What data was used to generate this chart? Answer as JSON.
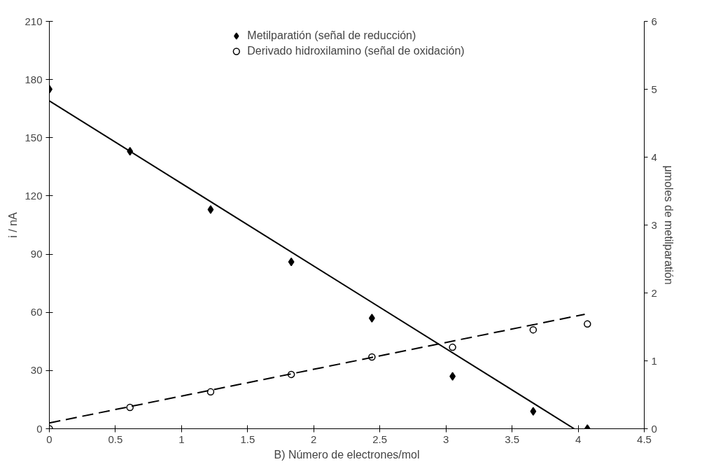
{
  "chart_data": {
    "type": "scatter",
    "xlabel": "B) Número de electrones/mol",
    "ylabel": "i / nA",
    "y2label": "μmoles de metilparatión",
    "xlim": [
      0,
      4.5
    ],
    "xticks": [
      0,
      0.5,
      1,
      1.5,
      2,
      2.5,
      3,
      3.5,
      4,
      4.5
    ],
    "ylim": [
      0,
      210
    ],
    "yticks": [
      0,
      30,
      60,
      90,
      120,
      150,
      180,
      210
    ],
    "y2lim": [
      0,
      6
    ],
    "y2ticks": [
      0,
      1,
      2,
      3,
      4,
      5,
      6
    ],
    "x": [
      0,
      0.61,
      1.22,
      1.83,
      2.44,
      3.05,
      3.66,
      4.07
    ],
    "series": [
      {
        "name": "Metilparatión (señal de reducción)",
        "color": "#000000",
        "marker": "diamond",
        "values": [
          175,
          143,
          113,
          86,
          57,
          27,
          9,
          0
        ]
      },
      {
        "name": "Derivado hidroxilamino (señal de oxidación)",
        "color": "#000000",
        "marker": "circle",
        "values": [
          0,
          11,
          19,
          28,
          37,
          42,
          51,
          54
        ]
      },
      {
        "type": "line",
        "color": "#000000",
        "line_style": "solid",
        "marker": "none",
        "x": [
          0,
          3.97
        ],
        "values": [
          169,
          0
        ]
      },
      {
        "type": "line",
        "color": "#000000",
        "line_style": "dashed",
        "marker": "none",
        "x": [
          0,
          4.05
        ],
        "values": [
          3,
          59
        ]
      }
    ],
    "legend": "top",
    "grid": false
  }
}
